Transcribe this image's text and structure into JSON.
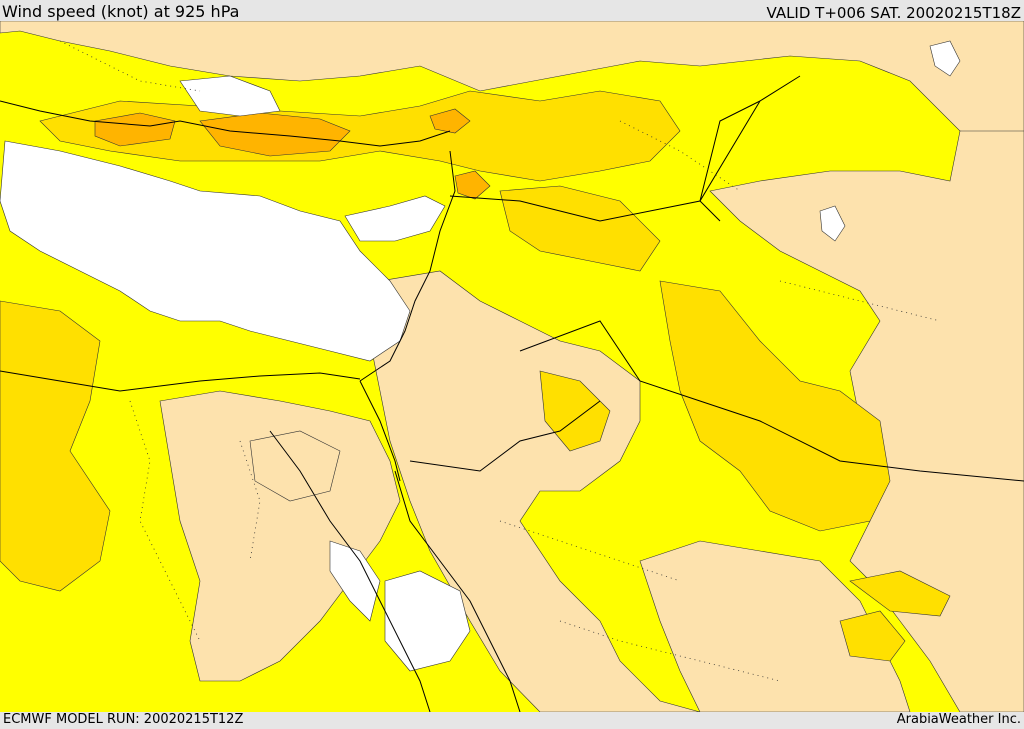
{
  "header": {
    "title": "Wind speed (knot) at 925 hPa",
    "valid": "VALID T+006 SAT. 20020215T18Z"
  },
  "footer": {
    "model_run": "ECMWF MODEL RUN: 20020215T12Z",
    "brand": "ArabiaWeather Inc."
  },
  "palette": {
    "calm": "#ffffff",
    "light": "#fde2ad",
    "moderate": "#ffff00",
    "fresh": "#ffe000",
    "strong": "#ffb400",
    "contour": "#000000"
  }
}
